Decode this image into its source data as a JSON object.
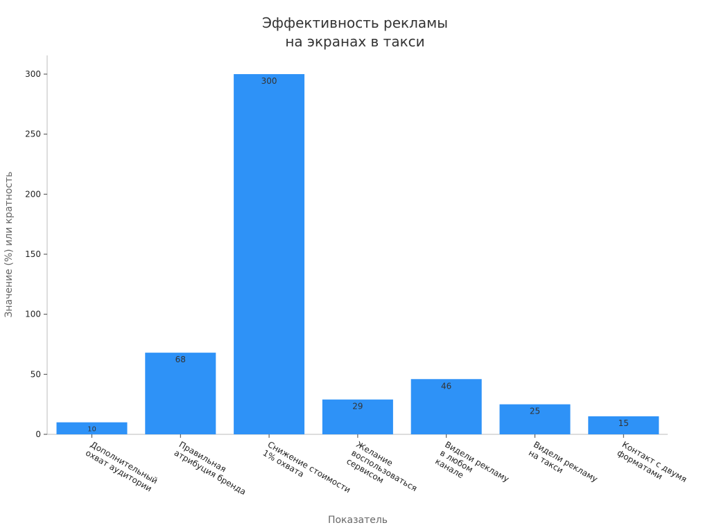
{
  "chart_data": {
    "type": "bar",
    "title": [
      "Эффективность рекламы",
      "на экранах в такси"
    ],
    "xlabel": "Показатель",
    "ylabel": "Значение (%) или кратность",
    "ylim": [
      0,
      315
    ],
    "yticks": [
      0,
      50,
      100,
      150,
      200,
      250,
      300
    ],
    "categories": [
      [
        "Дополнительный",
        "охват аудитории"
      ],
      [
        "Правильная",
        "атрибуция бренда"
      ],
      [
        "Снижение стоимости",
        "1% охвата"
      ],
      [
        "Желание",
        "воспользоваться",
        "сервисом"
      ],
      [
        "Видели рекламу",
        "в любом",
        "канале"
      ],
      [
        "Видели рекламу",
        "на такси"
      ],
      [
        "Контакт с двумя",
        "форматами"
      ]
    ],
    "values": [
      10,
      68,
      300,
      29,
      46,
      25,
      15
    ],
    "data_labels": [
      "10",
      "68",
      "300",
      "29",
      "46",
      "25",
      "15"
    ],
    "bar_color": "#2e92f7",
    "grid": false,
    "legend": "none"
  }
}
